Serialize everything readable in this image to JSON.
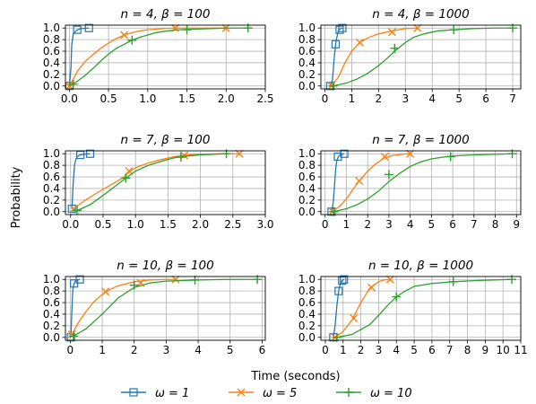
{
  "figure": {
    "xlabel": "Time (seconds)",
    "ylabel": "Probability",
    "legend": [
      {
        "label": "ω = 1",
        "color": "#1f77b4",
        "marker": "square"
      },
      {
        "label": "ω = 5",
        "color": "#ff7f0e",
        "marker": "x"
      },
      {
        "label": "ω = 10",
        "color": "#2ca02c",
        "marker": "plus"
      }
    ],
    "legend_placement": "bottom-center",
    "grid": true
  },
  "chart_data": [
    {
      "type": "line",
      "title": "n = 4, β = 100",
      "xlim": [
        -0.05,
        2.5
      ],
      "ylim": [
        -0.05,
        1.05
      ],
      "xticks": [
        "0.0",
        "0.5",
        "1.0",
        "1.5",
        "2.0",
        "2.5"
      ],
      "yticks": [
        "0.0",
        "0.2",
        "0.4",
        "0.6",
        "0.8",
        "1.0"
      ],
      "series": [
        {
          "name": "ω = 1",
          "color": "#1f77b4",
          "marker": "square",
          "x": [
            0.0,
            0.02,
            0.03,
            0.05,
            0.07,
            0.1,
            0.15,
            0.25
          ],
          "y": [
            0.0,
            0.3,
            0.7,
            0.9,
            0.93,
            0.97,
            0.99,
            1.0
          ],
          "marker_x": [
            0.0,
            0.1,
            0.25
          ],
          "marker_y": [
            0.0,
            0.97,
            1.0
          ]
        },
        {
          "name": "ω = 5",
          "color": "#ff7f0e",
          "marker": "x",
          "x": [
            0.0,
            0.05,
            0.1,
            0.2,
            0.3,
            0.4,
            0.5,
            0.6,
            0.7,
            0.8,
            0.9,
            1.0,
            1.1,
            1.2,
            1.35,
            1.6,
            2.0
          ],
          "y": [
            0.0,
            0.12,
            0.25,
            0.42,
            0.54,
            0.65,
            0.74,
            0.82,
            0.88,
            0.92,
            0.95,
            0.97,
            0.98,
            0.99,
            1.0,
            1.0,
            1.0
          ],
          "marker_x": [
            0.0,
            0.7,
            1.35,
            2.0
          ],
          "marker_y": [
            0.0,
            0.88,
            1.0,
            1.0
          ]
        },
        {
          "name": "ω = 10",
          "color": "#2ca02c",
          "marker": "plus",
          "x": [
            0.0,
            0.1,
            0.2,
            0.3,
            0.4,
            0.5,
            0.6,
            0.7,
            0.8,
            0.9,
            1.0,
            1.1,
            1.25,
            1.4,
            1.6,
            1.8,
            2.0,
            2.28
          ],
          "y": [
            0.0,
            0.08,
            0.18,
            0.3,
            0.43,
            0.55,
            0.65,
            0.72,
            0.79,
            0.84,
            0.88,
            0.92,
            0.95,
            0.97,
            0.98,
            0.99,
            1.0,
            1.0
          ],
          "marker_x": [
            0.05,
            0.8,
            1.5,
            2.28
          ],
          "marker_y": [
            0.03,
            0.79,
            0.97,
            1.0
          ]
        }
      ]
    },
    {
      "type": "line",
      "title": "n = 4, β = 1000",
      "xlim": [
        -0.15,
        7.3
      ],
      "ylim": [
        -0.05,
        1.05
      ],
      "xticks": [
        "0",
        "1",
        "2",
        "3",
        "4",
        "5",
        "6",
        "7"
      ],
      "yticks": [
        "0.0",
        "0.2",
        "0.4",
        "0.6",
        "0.8",
        "1.0"
      ],
      "series": [
        {
          "name": "ω = 1",
          "color": "#1f77b4",
          "marker": "square",
          "x": [
            0.2,
            0.28,
            0.35,
            0.4,
            0.45,
            0.5,
            0.55,
            0.65
          ],
          "y": [
            0.0,
            0.1,
            0.5,
            0.72,
            0.85,
            0.95,
            0.98,
            1.0
          ],
          "marker_x": [
            0.2,
            0.4,
            0.55,
            0.65
          ],
          "marker_y": [
            0.0,
            0.72,
            0.97,
            1.0
          ]
        },
        {
          "name": "ω = 5",
          "color": "#ff7f0e",
          "marker": "x",
          "x": [
            0.25,
            0.5,
            0.75,
            1.0,
            1.3,
            1.6,
            2.0,
            2.5,
            3.0,
            3.45
          ],
          "y": [
            0.0,
            0.15,
            0.4,
            0.6,
            0.75,
            0.83,
            0.9,
            0.95,
            0.99,
            1.0
          ],
          "marker_x": [
            0.25,
            1.3,
            2.5,
            3.45
          ],
          "marker_y": [
            0.0,
            0.75,
            0.93,
            1.0
          ]
        },
        {
          "name": "ω = 10",
          "color": "#2ca02c",
          "marker": "plus",
          "x": [
            0.3,
            0.8,
            1.2,
            1.6,
            2.0,
            2.3,
            2.6,
            3.0,
            3.3,
            3.7,
            4.2,
            4.8,
            5.5,
            6.3,
            7.0
          ],
          "y": [
            0.0,
            0.05,
            0.12,
            0.22,
            0.35,
            0.47,
            0.6,
            0.75,
            0.84,
            0.9,
            0.95,
            0.97,
            0.99,
            1.0,
            1.0
          ],
          "marker_x": [
            0.3,
            2.6,
            4.8,
            7.0
          ],
          "marker_y": [
            0.0,
            0.65,
            0.97,
            1.0
          ]
        }
      ]
    },
    {
      "type": "line",
      "title": "n = 7, β = 100",
      "xlim": [
        -0.08,
        3.0
      ],
      "ylim": [
        -0.05,
        1.05
      ],
      "xticks": [
        "0.0",
        "0.5",
        "1.0",
        "1.5",
        "2.0",
        "2.5",
        "3.0"
      ],
      "yticks": [
        "0.0",
        "0.2",
        "0.4",
        "0.6",
        "0.8",
        "1.0"
      ],
      "series": [
        {
          "name": "ω = 1",
          "color": "#1f77b4",
          "marker": "square",
          "x": [
            0.02,
            0.04,
            0.06,
            0.08,
            0.1,
            0.15,
            0.2,
            0.3
          ],
          "y": [
            0.05,
            0.5,
            0.8,
            0.9,
            0.95,
            0.98,
            0.99,
            1.0
          ],
          "marker_x": [
            0.02,
            0.15,
            0.3
          ],
          "marker_y": [
            0.05,
            0.98,
            1.0
          ]
        },
        {
          "name": "ω = 5",
          "color": "#ff7f0e",
          "marker": "x",
          "x": [
            0.05,
            0.2,
            0.4,
            0.6,
            0.8,
            0.9,
            1.0,
            1.2,
            1.4,
            1.6,
            1.8,
            2.0,
            2.3,
            2.6
          ],
          "y": [
            0.05,
            0.18,
            0.32,
            0.45,
            0.58,
            0.68,
            0.76,
            0.84,
            0.9,
            0.95,
            0.98,
            0.99,
            1.0,
            1.0
          ],
          "marker_x": [
            0.05,
            0.9,
            1.75,
            2.6
          ],
          "marker_y": [
            0.05,
            0.7,
            0.97,
            1.0
          ]
        },
        {
          "name": "ω = 10",
          "color": "#2ca02c",
          "marker": "plus",
          "x": [
            0.1,
            0.3,
            0.5,
            0.7,
            0.85,
            1.0,
            1.2,
            1.4,
            1.6,
            1.8,
            2.0,
            2.2,
            2.4
          ],
          "y": [
            0.02,
            0.12,
            0.28,
            0.45,
            0.58,
            0.7,
            0.8,
            0.87,
            0.93,
            0.96,
            0.98,
            0.99,
            1.0
          ],
          "marker_x": [
            0.1,
            0.85,
            1.7,
            2.4
          ],
          "marker_y": [
            0.02,
            0.58,
            0.94,
            1.0
          ]
        }
      ]
    },
    {
      "type": "line",
      "title": "n = 7, β = 1000",
      "xlim": [
        -0.2,
        9.2
      ],
      "ylim": [
        -0.05,
        1.05
      ],
      "xticks": [
        "0",
        "1",
        "2",
        "3",
        "4",
        "5",
        "6",
        "7",
        "8",
        "9"
      ],
      "yticks": [
        "0.0",
        "0.2",
        "0.4",
        "0.6",
        "0.8",
        "1.0"
      ],
      "series": [
        {
          "name": "ω = 1",
          "color": "#1f77b4",
          "marker": "square",
          "x": [
            0.3,
            0.38,
            0.45,
            0.5,
            0.55,
            0.62,
            0.7,
            0.8,
            0.9
          ],
          "y": [
            0.0,
            0.15,
            0.5,
            0.75,
            0.88,
            0.95,
            0.98,
            0.99,
            1.0
          ],
          "marker_x": [
            0.3,
            0.6,
            0.9
          ],
          "marker_y": [
            0.0,
            0.95,
            1.0
          ]
        },
        {
          "name": "ω = 5",
          "color": "#ff7f0e",
          "marker": "x",
          "x": [
            0.35,
            0.7,
            1.0,
            1.3,
            1.6,
            2.0,
            2.4,
            2.8,
            3.2,
            3.6,
            4.0
          ],
          "y": [
            0.0,
            0.1,
            0.22,
            0.38,
            0.53,
            0.7,
            0.83,
            0.93,
            0.97,
            0.99,
            1.0
          ],
          "marker_x": [
            0.35,
            1.6,
            2.8,
            4.0
          ],
          "marker_y": [
            0.0,
            0.53,
            0.95,
            1.0
          ]
        },
        {
          "name": "ω = 10",
          "color": "#2ca02c",
          "marker": "plus",
          "x": [
            0.4,
            1.0,
            1.5,
            2.0,
            2.5,
            3.0,
            3.5,
            4.0,
            4.5,
            5.0,
            5.5,
            6.0,
            7.0,
            8.0,
            8.8
          ],
          "y": [
            0.0,
            0.05,
            0.12,
            0.22,
            0.35,
            0.52,
            0.66,
            0.78,
            0.86,
            0.91,
            0.94,
            0.96,
            0.98,
            0.99,
            1.0
          ],
          "marker_x": [
            0.4,
            3.0,
            5.9,
            8.8
          ],
          "marker_y": [
            0.0,
            0.64,
            0.95,
            1.0
          ]
        }
      ]
    },
    {
      "type": "line",
      "title": "n = 10, β = 100",
      "xlim": [
        -0.15,
        6.1
      ],
      "ylim": [
        -0.05,
        1.05
      ],
      "xticks": [
        "0",
        "1",
        "2",
        "3",
        "4",
        "5",
        "6"
      ],
      "yticks": [
        "0.0",
        "0.2",
        "0.4",
        "0.6",
        "0.8",
        "1.0"
      ],
      "series": [
        {
          "name": "ω = 1",
          "color": "#1f77b4",
          "marker": "square",
          "x": [
            0.02,
            0.05,
            0.08,
            0.12,
            0.16,
            0.22,
            0.3
          ],
          "y": [
            0.0,
            0.45,
            0.82,
            0.93,
            0.97,
            0.99,
            1.0
          ],
          "marker_x": [
            0.02,
            0.12,
            0.3
          ],
          "marker_y": [
            0.0,
            0.93,
            1.0
          ]
        },
        {
          "name": "ω = 5",
          "color": "#ff7f0e",
          "marker": "x",
          "x": [
            0.05,
            0.25,
            0.5,
            0.75,
            1.0,
            1.25,
            1.5,
            2.0,
            2.5,
            3.0,
            3.3
          ],
          "y": [
            0.05,
            0.25,
            0.45,
            0.62,
            0.74,
            0.83,
            0.89,
            0.96,
            0.99,
            1.0,
            1.0
          ],
          "marker_x": [
            0.05,
            1.1,
            2.2,
            3.3
          ],
          "marker_y": [
            0.05,
            0.79,
            0.94,
            1.0
          ]
        },
        {
          "name": "ω = 10",
          "color": "#2ca02c",
          "marker": "plus",
          "x": [
            0.1,
            0.5,
            1.0,
            1.5,
            2.0,
            2.5,
            3.0,
            3.5,
            4.0,
            5.0,
            5.85
          ],
          "y": [
            0.02,
            0.15,
            0.4,
            0.68,
            0.86,
            0.94,
            0.97,
            0.98,
            0.99,
            1.0,
            1.0
          ],
          "marker_x": [
            0.1,
            2.0,
            3.9,
            5.85
          ],
          "marker_y": [
            0.02,
            0.9,
            0.99,
            1.0
          ]
        }
      ]
    },
    {
      "type": "line",
      "title": "n = 10, β = 1000",
      "xlim": [
        -0.25,
        11.0
      ],
      "ylim": [
        -0.05,
        1.05
      ],
      "xticks": [
        "0",
        "1",
        "2",
        "3",
        "4",
        "5",
        "6",
        "7",
        "8",
        "9",
        "10",
        "11"
      ],
      "yticks": [
        "0.0",
        "0.2",
        "0.4",
        "0.6",
        "0.8",
        "1.0"
      ],
      "series": [
        {
          "name": "ω = 1",
          "color": "#1f77b4",
          "marker": "square",
          "x": [
            0.45,
            0.55,
            0.65,
            0.75,
            0.85,
            0.95,
            1.05
          ],
          "y": [
            0.0,
            0.2,
            0.55,
            0.8,
            0.93,
            0.98,
            1.0
          ],
          "marker_x": [
            0.45,
            0.75,
            0.95,
            1.05
          ],
          "marker_y": [
            0.0,
            0.8,
            0.98,
            1.0
          ]
        },
        {
          "name": "ω = 5",
          "color": "#ff7f0e",
          "marker": "x",
          "x": [
            0.55,
            1.0,
            1.5,
            2.0,
            2.5,
            3.0,
            3.3,
            3.65
          ],
          "y": [
            0.0,
            0.1,
            0.3,
            0.6,
            0.85,
            0.96,
            0.99,
            1.0
          ],
          "marker_x": [
            0.55,
            1.6,
            2.6,
            3.65
          ],
          "marker_y": [
            0.0,
            0.33,
            0.86,
            1.0
          ]
        },
        {
          "name": "ω = 10",
          "color": "#2ca02c",
          "marker": "plus",
          "x": [
            0.65,
            1.5,
            2.5,
            3.0,
            3.5,
            4.0,
            4.5,
            5.0,
            6.0,
            7.2,
            8.5,
            10.5
          ],
          "y": [
            0.0,
            0.05,
            0.22,
            0.38,
            0.55,
            0.7,
            0.8,
            0.88,
            0.93,
            0.96,
            0.98,
            1.0
          ],
          "marker_x": [
            0.65,
            4.0,
            7.2,
            10.5
          ],
          "marker_y": [
            0.0,
            0.7,
            0.96,
            1.0
          ]
        }
      ]
    }
  ]
}
